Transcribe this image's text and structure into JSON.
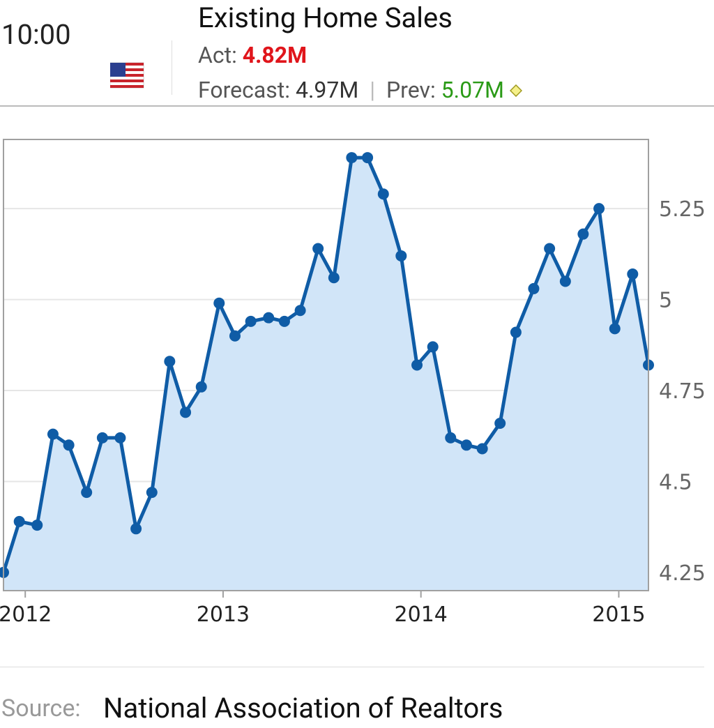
{
  "header": {
    "time": "10:00",
    "title": "Existing Home Sales",
    "actual_label": "Act:",
    "actual_value": "4.82M",
    "forecast_label": "Forecast:",
    "forecast_value": "4.97M",
    "previous_label": "Prev:",
    "previous_value": "5.07M"
  },
  "chart_data": {
    "type": "area",
    "x": [
      2011.89,
      2011.97,
      2012.06,
      2012.14,
      2012.22,
      2012.31,
      2012.39,
      2012.48,
      2012.56,
      2012.64,
      2012.73,
      2012.81,
      2012.89,
      2012.98,
      2013.06,
      2013.14,
      2013.23,
      2013.31,
      2013.39,
      2013.48,
      2013.56,
      2013.65,
      2013.73,
      2013.81,
      2013.9,
      2013.98,
      2014.06,
      2014.15,
      2014.23,
      2014.31,
      2014.4,
      2014.48,
      2014.57,
      2014.65,
      2014.73,
      2014.82,
      2014.9,
      2014.98,
      2015.07,
      2015.15
    ],
    "values": [
      4.25,
      4.39,
      4.38,
      4.63,
      4.6,
      4.47,
      4.62,
      4.62,
      4.37,
      4.47,
      4.83,
      4.69,
      4.76,
      4.99,
      4.9,
      4.94,
      4.95,
      4.94,
      4.97,
      5.14,
      5.06,
      5.39,
      5.39,
      5.29,
      5.12,
      4.82,
      4.87,
      4.62,
      4.6,
      4.59,
      4.66,
      4.91,
      5.03,
      5.14,
      5.05,
      5.18,
      5.25,
      4.92,
      5.07,
      4.82
    ],
    "color": "#0f5ca6",
    "fill": "#d1e5f8",
    "xlim": [
      2011.89,
      2015.15
    ],
    "xticks": [
      2012,
      2013,
      2014,
      2015
    ],
    "ylim": [
      4.2,
      5.44
    ],
    "yticks": [
      4.25,
      4.5,
      4.75,
      5,
      5.25
    ],
    "grid": true
  },
  "footer": {
    "source_label": "Source:",
    "source": "National Association of Realtors"
  }
}
